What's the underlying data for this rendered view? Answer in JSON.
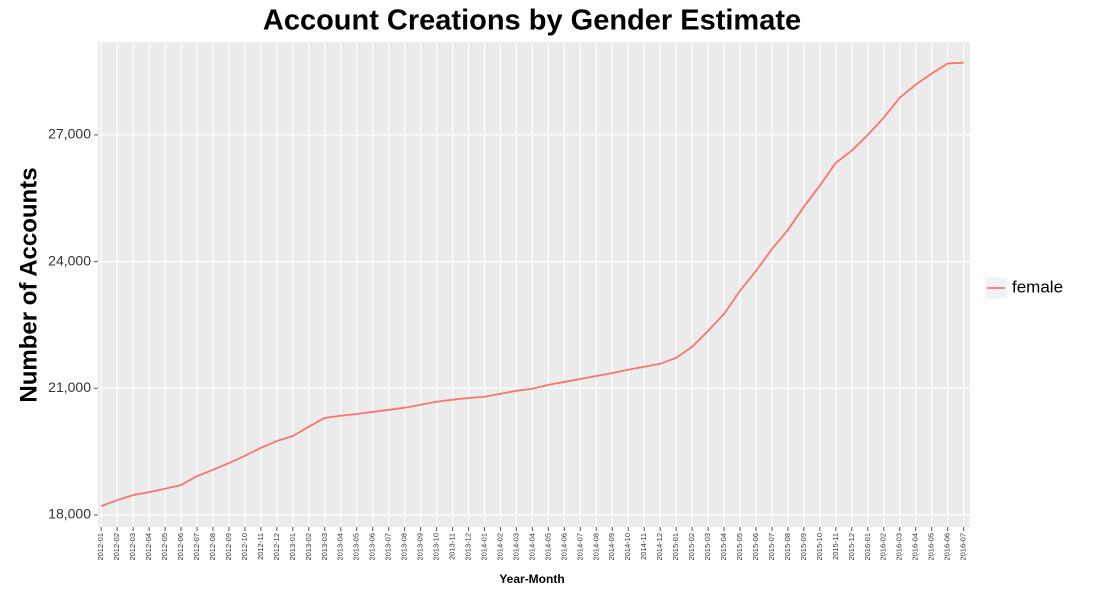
{
  "chart_data": {
    "type": "line",
    "title": "Account Creations by Gender Estimate",
    "x_label": "Year-Month",
    "y_label": "Number of Accounts",
    "categories": [
      "2012-01",
      "2012-02",
      "2012-03",
      "2012-04",
      "2012-05",
      "2012-06",
      "2012-07",
      "2012-08",
      "2012-09",
      "2012-10",
      "2012-11",
      "2012-12",
      "2013-01",
      "2013-02",
      "2013-03",
      "2013-04",
      "2013-05",
      "2013-06",
      "2013-07",
      "2013-08",
      "2013-09",
      "2013-10",
      "2013-11",
      "2013-12",
      "2014-01",
      "2014-02",
      "2014-03",
      "2014-04",
      "2014-05",
      "2014-06",
      "2014-07",
      "2014-08",
      "2014-09",
      "2014-10",
      "2014-11",
      "2014-12",
      "2015-01",
      "2015-02",
      "2015-03",
      "2015-04",
      "2015-05",
      "2015-06",
      "2015-07",
      "2015-08",
      "2015-09",
      "2015-10",
      "2015-11",
      "2015-12",
      "2016-01",
      "2016-02",
      "2016-03",
      "2016-04",
      "2016-05",
      "2016-06",
      "2016-07"
    ],
    "series": [
      {
        "name": "female",
        "color": "#F8766D",
        "values": [
          18210,
          18350,
          18470,
          18540,
          18620,
          18710,
          18920,
          19070,
          19230,
          19400,
          19590,
          19750,
          19870,
          20090,
          20300,
          20350,
          20390,
          20440,
          20490,
          20540,
          20610,
          20680,
          20730,
          20770,
          20800,
          20870,
          20940,
          20990,
          21080,
          21150,
          21220,
          21290,
          21360,
          21440,
          21510,
          21580,
          21720,
          21980,
          22360,
          22760,
          23310,
          23780,
          24300,
          24750,
          25300,
          25800,
          26340,
          26630,
          27000,
          27410,
          27880,
          28190,
          28450,
          28690,
          28710
        ]
      }
    ],
    "ylim": [
      17715,
      29200
    ],
    "yticks": [
      {
        "value": 18000,
        "label": "18,000"
      },
      {
        "value": 21000,
        "label": "21,000"
      },
      {
        "value": 24000,
        "label": "24,000"
      },
      {
        "value": 27000,
        "label": "27,000"
      }
    ],
    "grid": true,
    "legend": "right"
  }
}
